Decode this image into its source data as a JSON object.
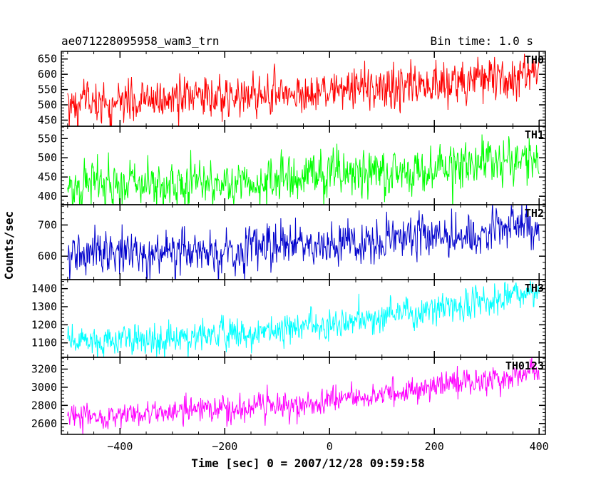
{
  "chart_data": {
    "type": "line",
    "title": "ae071228095958_wam3_trn",
    "bin_time": "Bin time: 1.0 s",
    "xlabel": "Time [sec] 0 = 2007/12/28 09:59:58",
    "ylabel": "Counts/sec",
    "xlim": [
      -512,
      412
    ],
    "x_ticks": [
      -400,
      -200,
      0,
      200,
      400
    ],
    "x_start": -500,
    "x_end": 400,
    "panels": [
      {
        "name": "TH0",
        "color": "#ff0000",
        "ylim": [
          430,
          675
        ],
        "y_ticks": [
          450,
          500,
          550,
          600,
          650
        ],
        "start_mean": 500,
        "end_mean": 610,
        "noise": 34,
        "trend_points": [
          [
            -500,
            505
          ],
          [
            -300,
            515
          ],
          [
            -100,
            535
          ],
          [
            100,
            555
          ],
          [
            250,
            580
          ],
          [
            400,
            610
          ]
        ]
      },
      {
        "name": "TH1",
        "color": "#00ff00",
        "ylim": [
          378,
          582
        ],
        "y_ticks": [
          400,
          450,
          500,
          550
        ],
        "start_mean": 428,
        "end_mean": 500,
        "noise": 28,
        "trend_points": [
          [
            -500,
            425
          ],
          [
            -300,
            435
          ],
          [
            -100,
            448
          ],
          [
            100,
            465
          ],
          [
            250,
            480
          ],
          [
            400,
            500
          ]
        ]
      },
      {
        "name": "TH2",
        "color": "#0000cc",
        "ylim": [
          525,
          765
        ],
        "y_ticks": [
          600,
          700
        ],
        "start_mean": 610,
        "end_mean": 700,
        "noise": 32,
        "trend_points": [
          [
            -500,
            610
          ],
          [
            -300,
            618
          ],
          [
            -100,
            632
          ],
          [
            100,
            652
          ],
          [
            250,
            672
          ],
          [
            400,
            702
          ]
        ]
      },
      {
        "name": "TH3",
        "color": "#00ffff",
        "ylim": [
          1020,
          1450
        ],
        "y_ticks": [
          1100,
          1200,
          1300,
          1400
        ],
        "start_mean": 1110,
        "end_mean": 1380,
        "noise": 42,
        "trend_points": [
          [
            -500,
            1110
          ],
          [
            -300,
            1130
          ],
          [
            -100,
            1170
          ],
          [
            100,
            1250
          ],
          [
            250,
            1310
          ],
          [
            400,
            1380
          ]
        ]
      },
      {
        "name": "TH0123",
        "color": "#ff00ff",
        "ylim": [
          2480,
          3330
        ],
        "y_ticks": [
          2600,
          2800,
          3000,
          3200
        ],
        "start_mean": 2660,
        "end_mean": 3180,
        "noise": 70,
        "trend_points": [
          [
            -500,
            2660
          ],
          [
            -300,
            2720
          ],
          [
            -100,
            2800
          ],
          [
            100,
            2930
          ],
          [
            250,
            3040
          ],
          [
            400,
            3185
          ]
        ]
      }
    ]
  }
}
